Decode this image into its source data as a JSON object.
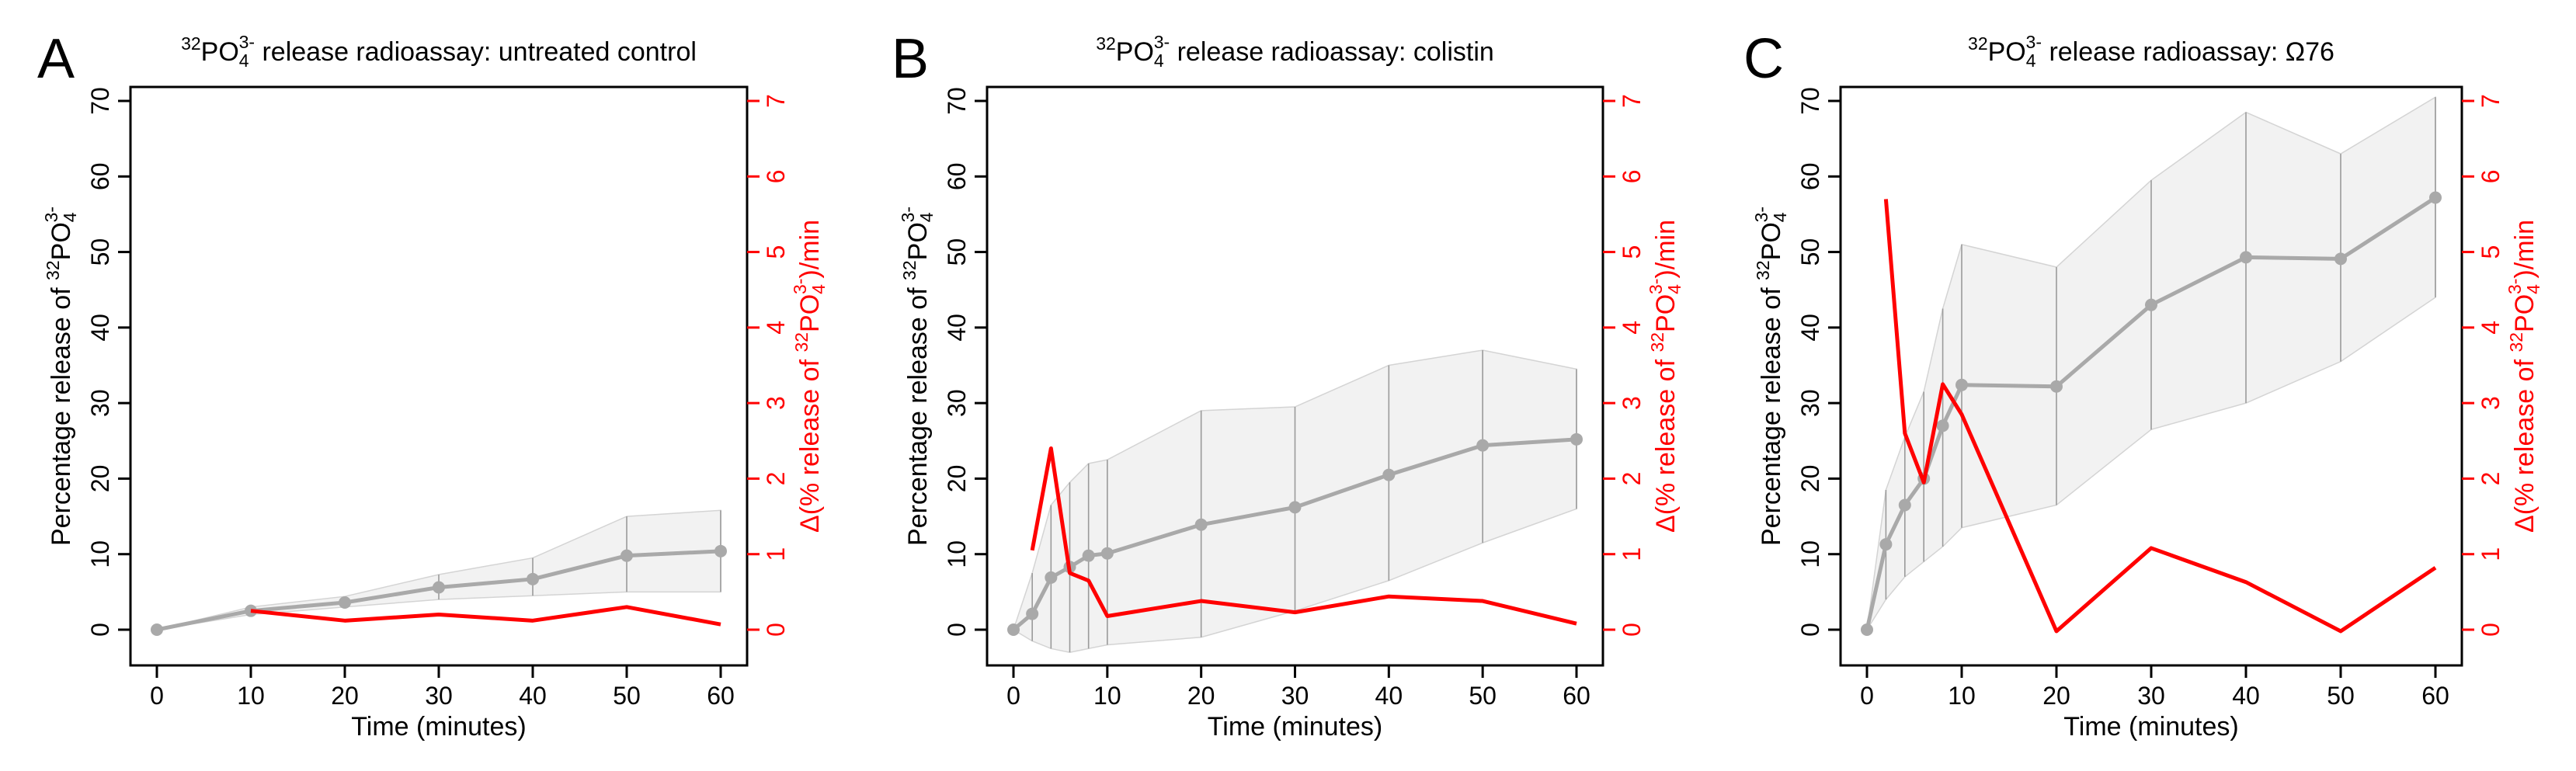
{
  "chart_data": [
    {
      "type": "line",
      "panel": "A",
      "title_prefix": "32",
      "title_ion": "PO",
      "title_sub": "4",
      "title_sup": "3-",
      "title_rest": " release radioassay: untreated control",
      "xlabel": "Time (minutes)",
      "ylabel_main": "Percentage release of ",
      "ylabel_sup1": "32",
      "ylabel_ion": "PO",
      "ylabel_sub": "4",
      "ylabel_sup2": "3-",
      "y2label_pre": "Δ(% release of ",
      "y2label_sup1": "32",
      "y2label_ion": "PO",
      "y2label_sub": "4",
      "y2label_sup2": "3-",
      "y2label_post": ")/min",
      "xlim": [
        0,
        60
      ],
      "ylim": [
        0,
        70
      ],
      "y2lim": [
        0,
        7
      ],
      "xticks": [
        0,
        10,
        20,
        30,
        40,
        50,
        60
      ],
      "yticks": [
        0,
        10,
        20,
        30,
        40,
        50,
        60,
        70
      ],
      "y2ticks": [
        0,
        1,
        2,
        3,
        4,
        5,
        6,
        7
      ],
      "series": [
        {
          "name": "Percentage release (mean)",
          "axis": "left",
          "color": "#a9a9a9",
          "x": [
            0,
            10,
            20,
            30,
            40,
            50,
            60
          ],
          "values": [
            0,
            2.5,
            3.6,
            5.6,
            6.7,
            9.8,
            10.4
          ],
          "lower": [
            0,
            2.0,
            3.0,
            4.0,
            4.5,
            5.0,
            5.0
          ],
          "upper": [
            0,
            3.0,
            4.4,
            7.3,
            9.5,
            15.0,
            15.8
          ]
        },
        {
          "name": "Δ release rate",
          "axis": "right",
          "color": "#ff0000",
          "x": [
            10,
            20,
            30,
            40,
            50,
            60
          ],
          "values": [
            0.25,
            0.12,
            0.2,
            0.12,
            0.3,
            0.07
          ]
        }
      ]
    },
    {
      "type": "line",
      "panel": "B",
      "title_prefix": "32",
      "title_ion": "PO",
      "title_sub": "4",
      "title_sup": "3-",
      "title_rest": " release radioassay: colistin",
      "xlabel": "Time (minutes)",
      "ylabel_main": "Percentage release of ",
      "ylabel_sup1": "32",
      "ylabel_ion": "PO",
      "ylabel_sub": "4",
      "ylabel_sup2": "3-",
      "y2label_pre": "Δ(% release of ",
      "y2label_sup1": "32",
      "y2label_ion": "PO",
      "y2label_sub": "4",
      "y2label_sup2": "3-",
      "y2label_post": ")/min",
      "xlim": [
        0,
        60
      ],
      "ylim": [
        0,
        70
      ],
      "y2lim": [
        0,
        7
      ],
      "xticks": [
        0,
        10,
        20,
        30,
        40,
        50,
        60
      ],
      "yticks": [
        0,
        10,
        20,
        30,
        40,
        50,
        60,
        70
      ],
      "y2ticks": [
        0,
        1,
        2,
        3,
        4,
        5,
        6,
        7
      ],
      "series": [
        {
          "name": "Percentage release (mean)",
          "axis": "left",
          "color": "#a9a9a9",
          "x": [
            0,
            2,
            4,
            6,
            8,
            10,
            20,
            30,
            40,
            50,
            60
          ],
          "values": [
            0,
            2.1,
            6.9,
            8.3,
            9.8,
            10.1,
            13.9,
            16.2,
            20.5,
            24.4,
            25.2
          ],
          "lower": [
            0,
            -1.5,
            -2.5,
            -3.0,
            -2.5,
            -2.0,
            -1.0,
            2.5,
            6.5,
            11.5,
            16.0
          ],
          "upper": [
            0,
            7.5,
            16.5,
            19.5,
            22.0,
            22.5,
            29.0,
            29.5,
            35.0,
            37.0,
            34.5
          ]
        },
        {
          "name": "Δ release rate",
          "axis": "right",
          "color": "#ff0000",
          "x": [
            2,
            4,
            6,
            8,
            10,
            20,
            30,
            40,
            50,
            60
          ],
          "values": [
            1.05,
            2.4,
            0.75,
            0.65,
            0.18,
            0.38,
            0.23,
            0.44,
            0.38,
            0.08
          ]
        }
      ]
    },
    {
      "type": "line",
      "panel": "C",
      "title_prefix": "32",
      "title_ion": "PO",
      "title_sub": "4",
      "title_sup": "3-",
      "title_rest": " release radioassay: Ω76",
      "xlabel": "Time (minutes)",
      "ylabel_main": "Percentage release of ",
      "ylabel_sup1": "32",
      "ylabel_ion": "PO",
      "ylabel_sub": "4",
      "ylabel_sup2": "3-",
      "y2label_pre": "Δ(% release of ",
      "y2label_sup1": "32",
      "y2label_ion": "PO",
      "y2label_sub": "4",
      "y2label_sup2": "3-",
      "y2label_post": ")/min",
      "xlim": [
        0,
        60
      ],
      "ylim": [
        0,
        70
      ],
      "y2lim": [
        0,
        7
      ],
      "xticks": [
        0,
        10,
        20,
        30,
        40,
        50,
        60
      ],
      "yticks": [
        0,
        10,
        20,
        30,
        40,
        50,
        60,
        70
      ],
      "y2ticks": [
        0,
        1,
        2,
        3,
        4,
        5,
        6,
        7
      ],
      "series": [
        {
          "name": "Percentage release (mean)",
          "axis": "left",
          "color": "#a9a9a9",
          "x": [
            0,
            2,
            4,
            6,
            8,
            10,
            20,
            30,
            40,
            50,
            60
          ],
          "values": [
            0,
            11.3,
            16.5,
            20.0,
            27.0,
            32.4,
            32.2,
            43.0,
            49.3,
            49.1,
            57.2
          ],
          "lower": [
            0,
            4.0,
            7.0,
            9.0,
            11.0,
            13.5,
            16.5,
            26.5,
            30.0,
            35.5,
            44.0
          ],
          "upper": [
            0,
            18.5,
            25.5,
            31.5,
            42.5,
            51.0,
            48.0,
            59.5,
            68.5,
            63.0,
            70.5
          ]
        },
        {
          "name": "Δ release rate",
          "axis": "right",
          "color": "#ff0000",
          "x": [
            2,
            4,
            6,
            8,
            10,
            20,
            30,
            40,
            50,
            60
          ],
          "values": [
            5.7,
            2.6,
            1.95,
            3.25,
            2.85,
            -0.02,
            1.08,
            0.63,
            -0.02,
            0.82
          ]
        }
      ]
    }
  ]
}
